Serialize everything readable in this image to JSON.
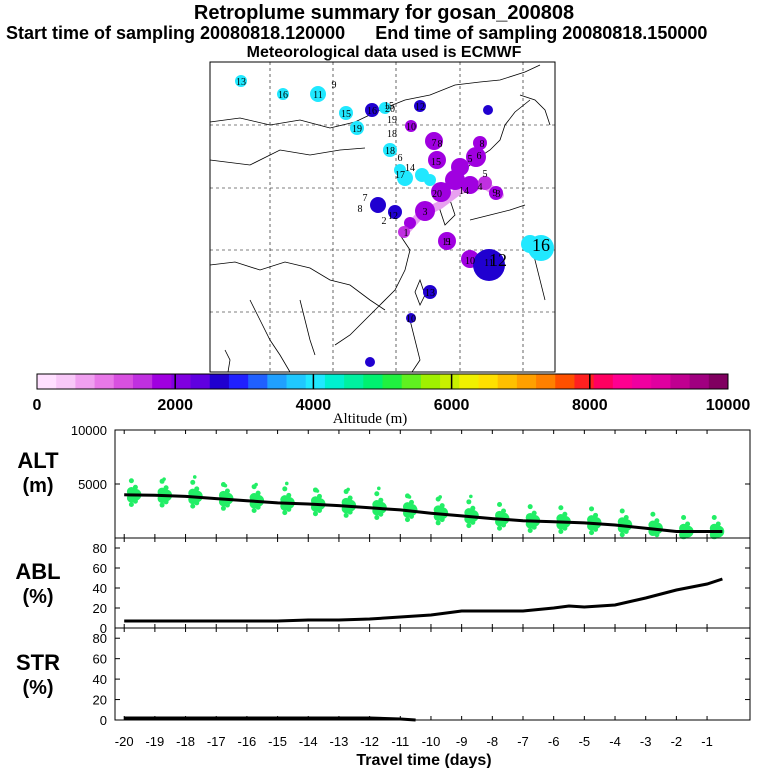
{
  "header": {
    "title": "Retroplume summary for gosan_200808",
    "start_time": "Start time of sampling 20080818.120000",
    "end_time": "End time of sampling 20080818.150000",
    "met": "Meteorological data used is ECMWF"
  },
  "colorbar": {
    "label": "Altitude (m)",
    "ticks": [
      "0",
      "2000",
      "4000",
      "6000",
      "8000",
      "10000"
    ],
    "colors": [
      "#ffe0ff",
      "#f8c8f8",
      "#f0a0f0",
      "#e878e8",
      "#d850e0",
      "#c030e0",
      "#a000e0",
      "#8000e0",
      "#6000e0",
      "#2000d0",
      "#2020ff",
      "#2060ff",
      "#20a0ff",
      "#20c8ff",
      "#20e8ff",
      "#00f0d0",
      "#00f0a0",
      "#00f070",
      "#20f040",
      "#60f020",
      "#a0f000",
      "#c8f000",
      "#f0f000",
      "#ffe000",
      "#ffc000",
      "#ffa000",
      "#ff8000",
      "#ff5000",
      "#ff2020",
      "#ff0060",
      "#ff0090",
      "#f000a0",
      "#e000a0",
      "#c00090",
      "#a00080",
      "#800060"
    ]
  },
  "map_labels": [
    "13",
    "16",
    "11",
    "9",
    "15",
    "16",
    "20",
    "19",
    "18",
    "10",
    "19",
    "12",
    "17",
    "18",
    "8",
    "6",
    "15",
    "7",
    "12",
    "3",
    "20",
    "14",
    "5",
    "3",
    "4",
    "5",
    "6",
    "9",
    "8",
    "7",
    "8",
    "2",
    "1",
    "11",
    "10",
    "9",
    "13",
    "11",
    "12",
    "16",
    "10",
    "14",
    "15"
  ],
  "chart_data": [
    {
      "type": "scatter",
      "panel": "ALT",
      "ylabel": "ALT",
      "yunit": "(m)",
      "ylim": [
        0,
        10000
      ],
      "yticks": [
        "5000",
        "10000"
      ],
      "xlim": [
        -20,
        0
      ],
      "mean_line": {
        "x": [
          -20,
          -19,
          -18,
          -17,
          -16,
          -15,
          -14,
          -13,
          -12,
          -11,
          -10,
          -9,
          -8,
          -7,
          -6,
          -5,
          -4,
          -3,
          -2,
          -1,
          -0.5
        ],
        "y": [
          4000,
          3950,
          3850,
          3650,
          3450,
          3250,
          3150,
          3000,
          2800,
          2600,
          2300,
          2050,
          1800,
          1600,
          1500,
          1400,
          1200,
          900,
          600,
          600,
          600
        ]
      },
      "particle_color": "#22ee66"
    },
    {
      "type": "line",
      "panel": "ABL",
      "ylabel": "ABL",
      "yunit": "(%)",
      "ylim": [
        0,
        90
      ],
      "yticks": [
        "0",
        "20",
        "40",
        "60",
        "80"
      ],
      "xlim": [
        -20,
        0
      ],
      "x": [
        -20,
        -19,
        -18,
        -17,
        -16,
        -15,
        -14,
        -13,
        -12,
        -11,
        -10,
        -9,
        -8,
        -7,
        -6,
        -5.5,
        -5,
        -4,
        -3,
        -2,
        -1,
        -0.5
      ],
      "y": [
        7,
        7,
        7,
        7,
        7,
        7,
        8,
        8,
        9,
        11,
        13,
        17,
        17,
        17,
        20,
        22,
        21,
        23,
        30,
        38,
        44,
        49
      ]
    },
    {
      "type": "line",
      "panel": "STR",
      "ylabel": "STR",
      "yunit": "(%)",
      "ylim": [
        0,
        90
      ],
      "yticks": [
        "0",
        "20",
        "40",
        "60",
        "80"
      ],
      "xlim": [
        -20,
        0
      ],
      "x": [
        -20,
        -15,
        -12,
        -11,
        -10.5
      ],
      "y": [
        2,
        2,
        2,
        1,
        0
      ]
    }
  ],
  "xaxis": {
    "label": "Travel time (days)",
    "ticks": [
      "-20",
      "-19",
      "-18",
      "-17",
      "-16",
      "-15",
      "-14",
      "-13",
      "-12",
      "-11",
      "-10",
      "-9",
      "-8",
      "-7",
      "-6",
      "-5",
      "-4",
      "-3",
      "-2",
      "-1"
    ]
  }
}
